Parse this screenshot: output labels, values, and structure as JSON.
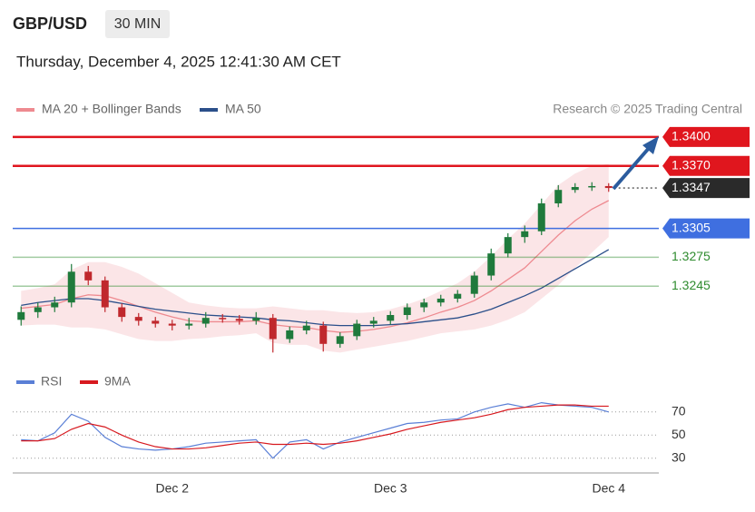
{
  "header": {
    "symbol": "GBP/USD",
    "interval": "30 MIN",
    "timestamp": "Thursday, December 4, 2025 12:41:30 AM CET",
    "credit": "Research © 2025 Trading Central"
  },
  "chart_data": [
    {
      "type": "candlestick",
      "categories": [
        null,
        null,
        null,
        null,
        null,
        null,
        null,
        null,
        null,
        "Dec 2",
        null,
        null,
        null,
        null,
        null,
        null,
        null,
        null,
        null,
        null,
        null,
        null,
        "Dec 3",
        null,
        null,
        null,
        null,
        null,
        null,
        null,
        null,
        null,
        null,
        null,
        null,
        "Dec 4"
      ],
      "open": [
        1.321,
        1.3218,
        1.3223,
        1.3228,
        1.326,
        1.3251,
        1.3223,
        1.3213,
        1.3209,
        1.3206,
        1.3204,
        1.3206,
        1.3212,
        1.3211,
        1.3209,
        1.3212,
        1.319,
        1.3199,
        1.3204,
        1.3185,
        1.3193,
        1.3206,
        1.3209,
        1.3215,
        1.3223,
        1.3228,
        1.3232,
        1.3237,
        1.3256,
        1.3279,
        1.3296,
        1.3302,
        1.3331,
        1.3345,
        1.3348,
        1.3349
      ],
      "high": [
        1.3224,
        1.3228,
        1.3234,
        1.3268,
        1.3266,
        1.3255,
        1.3227,
        1.3217,
        1.3213,
        1.321,
        1.3212,
        1.3218,
        1.3216,
        1.3215,
        1.3218,
        1.3216,
        1.3203,
        1.3209,
        1.3208,
        1.3197,
        1.321,
        1.3213,
        1.3219,
        1.3227,
        1.3232,
        1.3236,
        1.3241,
        1.326,
        1.3284,
        1.33,
        1.3308,
        1.3336,
        1.335,
        1.3352,
        1.3353,
        1.3352
      ],
      "low": [
        1.3204,
        1.3212,
        1.3218,
        1.3223,
        1.3246,
        1.3218,
        1.3208,
        1.3204,
        1.3202,
        1.3199,
        1.32,
        1.3202,
        1.3207,
        1.3205,
        1.3205,
        1.3176,
        1.3186,
        1.3195,
        1.3177,
        1.3181,
        1.3189,
        1.3202,
        1.3205,
        1.321,
        1.3218,
        1.3224,
        1.3228,
        1.3233,
        1.3251,
        1.3275,
        1.329,
        1.3298,
        1.3327,
        1.3342,
        1.3344,
        1.3343
      ],
      "close": [
        1.3218,
        1.3223,
        1.3228,
        1.326,
        1.3251,
        1.3223,
        1.3213,
        1.3209,
        1.3206,
        1.3204,
        1.3206,
        1.3212,
        1.3211,
        1.3209,
        1.3212,
        1.319,
        1.3199,
        1.3204,
        1.3185,
        1.3193,
        1.3206,
        1.3209,
        1.3215,
        1.3223,
        1.3228,
        1.3232,
        1.3237,
        1.3256,
        1.3279,
        1.3296,
        1.3302,
        1.3331,
        1.3345,
        1.3348,
        1.3349,
        1.3347
      ],
      "up_color": "#1f7a3c",
      "down_color": "#c0282d",
      "series": [
        {
          "name": "MA 20 + Bollinger Bands",
          "color": "#ee8a90",
          "values": [
            1.3222,
            1.3224,
            1.3226,
            1.3232,
            1.3236,
            1.3235,
            1.323,
            1.3224,
            1.3218,
            1.3213,
            1.3209,
            1.3208,
            1.3208,
            1.3208,
            1.3209,
            1.3205,
            1.3203,
            1.3202,
            1.3199,
            1.3197,
            1.3198,
            1.32,
            1.3203,
            1.3207,
            1.3212,
            1.3218,
            1.3223,
            1.323,
            1.324,
            1.3252,
            1.3264,
            1.3281,
            1.3298,
            1.3313,
            1.3325,
            1.3334
          ],
          "upper": [
            1.324,
            1.3243,
            1.3247,
            1.3262,
            1.327,
            1.327,
            1.3265,
            1.3258,
            1.3248,
            1.3238,
            1.3228,
            1.3225,
            1.3223,
            1.3222,
            1.3222,
            1.3224,
            1.3222,
            1.322,
            1.322,
            1.3218,
            1.3217,
            1.3218,
            1.3221,
            1.3226,
            1.3232,
            1.324,
            1.3248,
            1.326,
            1.3276,
            1.3294,
            1.331,
            1.333,
            1.335,
            1.3362,
            1.337,
            1.3372
          ],
          "lower": [
            1.3204,
            1.3205,
            1.3205,
            1.3202,
            1.3202,
            1.32,
            1.3195,
            1.319,
            1.3188,
            1.3188,
            1.319,
            1.3191,
            1.3193,
            1.3194,
            1.3196,
            1.3186,
            1.3184,
            1.3184,
            1.3178,
            1.3176,
            1.3179,
            1.3182,
            1.3185,
            1.3188,
            1.3192,
            1.3196,
            1.3198,
            1.32,
            1.3204,
            1.321,
            1.3218,
            1.3232,
            1.3246,
            1.3264,
            1.328,
            1.3296
          ]
        },
        {
          "name": "MA 50",
          "color": "#2b4f8a",
          "values": [
            1.3225,
            1.3228,
            1.323,
            1.3232,
            1.3232,
            1.323,
            1.3227,
            1.3224,
            1.3221,
            1.3219,
            1.3217,
            1.3215,
            1.3214,
            1.3213,
            1.3212,
            1.321,
            1.3209,
            1.3207,
            1.3205,
            1.3204,
            1.3204,
            1.3204,
            1.3205,
            1.3206,
            1.3208,
            1.321,
            1.3212,
            1.3216,
            1.3221,
            1.3228,
            1.3235,
            1.3243,
            1.3253,
            1.3263,
            1.3273,
            1.3283
          ]
        }
      ],
      "levels": [
        {
          "value": 1.34,
          "label": "1.3400",
          "color": "#e0161e",
          "line": "solid",
          "box": true
        },
        {
          "value": 1.337,
          "label": "1.3370",
          "color": "#e0161e",
          "line": "solid",
          "box": true
        },
        {
          "value": 1.3347,
          "label": "1.3347",
          "color": "#2a2a2a",
          "line": "dotted",
          "box": true
        },
        {
          "value": 1.3305,
          "label": "1.3305",
          "color": "#3f6fe0",
          "line": "solid",
          "box": true
        },
        {
          "value": 1.3275,
          "label": "1.3275",
          "color": "#2e8b2e",
          "line": "solid",
          "box": false
        },
        {
          "value": 1.3245,
          "label": "1.3245",
          "color": "#2e8b2e",
          "line": "solid",
          "box": false
        }
      ],
      "ylim": [
        1.3165,
        1.3415
      ]
    },
    {
      "type": "line",
      "series": [
        {
          "name": "RSI",
          "color": "#5a7fd6",
          "values": [
            46,
            45,
            52,
            68,
            62,
            48,
            40,
            38,
            37,
            38,
            40,
            43,
            44,
            45,
            46,
            30,
            44,
            46,
            38,
            44,
            48,
            52,
            56,
            60,
            61,
            63,
            64,
            70,
            74,
            77,
            74,
            78,
            76,
            75,
            74,
            70
          ]
        },
        {
          "name": "9MA",
          "color": "#d7191f",
          "values": [
            45,
            45,
            47,
            55,
            60,
            57,
            50,
            44,
            40,
            38,
            38,
            39,
            41,
            43,
            44,
            42,
            42,
            43,
            42,
            43,
            45,
            48,
            51,
            55,
            58,
            61,
            63,
            65,
            68,
            72,
            74,
            75,
            76,
            76,
            75,
            75
          ]
        }
      ],
      "ylim": [
        20,
        82
      ],
      "yticks": [
        30,
        50,
        70
      ],
      "grid": true
    }
  ]
}
